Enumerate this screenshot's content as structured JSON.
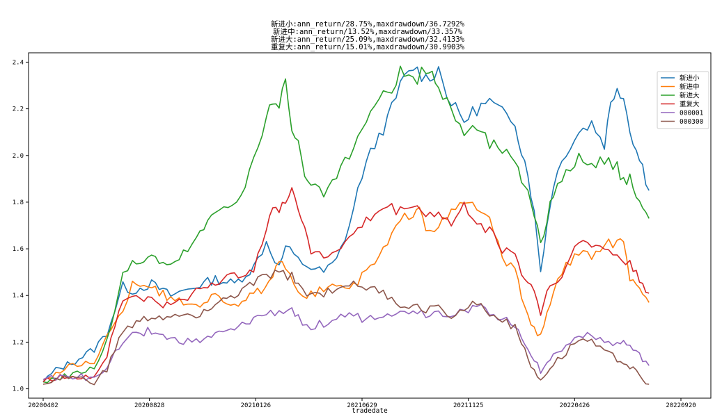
{
  "chart_data": {
    "type": "line",
    "title_lines": [
      "新进小:ann_return/28.75%,maxdrawdown/36.7292%",
      "新进中:ann_return/13.52%,maxdrawdown/33.357%",
      "新进大:ann_return/25.09%,maxdrawdown/32.4133%",
      "重复大:ann_return/15.01%,maxdrawdown/30.9903%"
    ],
    "xlabel": "tradedate",
    "ylabel": "",
    "x_ticks": [
      "20200402",
      "20200828",
      "20210126",
      "20210629",
      "20211125",
      "20220426",
      "20220920"
    ],
    "y_ticks": [
      1.0,
      1.2,
      1.4,
      1.6,
      1.8,
      2.0,
      2.2,
      2.4
    ],
    "ylim": [
      0.96,
      2.44
    ],
    "legend_position": "top-right",
    "grid": false,
    "series": [
      {
        "name": "新进小",
        "color": "#1f77b4",
        "values": [
          [
            0,
            1.03
          ],
          [
            0.02,
            1.08
          ],
          [
            0.05,
            1.12
          ],
          [
            0.08,
            1.17
          ],
          [
            0.1,
            1.24
          ],
          [
            0.125,
            1.44
          ],
          [
            0.14,
            1.42
          ],
          [
            0.17,
            1.45
          ],
          [
            0.2,
            1.4
          ],
          [
            0.24,
            1.44
          ],
          [
            0.27,
            1.47
          ],
          [
            0.3,
            1.45
          ],
          [
            0.33,
            1.52
          ],
          [
            0.35,
            1.63
          ],
          [
            0.37,
            1.52
          ],
          [
            0.38,
            1.61
          ],
          [
            0.4,
            1.55
          ],
          [
            0.42,
            1.52
          ],
          [
            0.44,
            1.5
          ],
          [
            0.46,
            1.55
          ],
          [
            0.48,
            1.7
          ],
          [
            0.5,
            1.92
          ],
          [
            0.52,
            2.05
          ],
          [
            0.54,
            2.15
          ],
          [
            0.56,
            2.3
          ],
          [
            0.58,
            2.38
          ],
          [
            0.6,
            2.33
          ],
          [
            0.62,
            2.37
          ],
          [
            0.64,
            2.22
          ],
          [
            0.66,
            2.15
          ],
          [
            0.68,
            2.2
          ],
          [
            0.7,
            2.23
          ],
          [
            0.72,
            2.18
          ],
          [
            0.74,
            2.15
          ],
          [
            0.75,
            2.02
          ],
          [
            0.76,
            1.93
          ],
          [
            0.77,
            1.75
          ],
          [
            0.78,
            1.51
          ],
          [
            0.79,
            1.7
          ],
          [
            0.8,
            1.88
          ],
          [
            0.82,
            2.02
          ],
          [
            0.84,
            2.1
          ],
          [
            0.86,
            2.14
          ],
          [
            0.88,
            2.05
          ],
          [
            0.89,
            2.22
          ],
          [
            0.9,
            2.3
          ],
          [
            0.91,
            2.25
          ],
          [
            0.92,
            2.12
          ],
          [
            0.93,
            2.02
          ],
          [
            0.94,
            1.95
          ],
          [
            0.95,
            1.85
          ]
        ]
      },
      {
        "name": "新进中",
        "color": "#ff7f0e",
        "values": [
          [
            0,
            1.04
          ],
          [
            0.04,
            1.09
          ],
          [
            0.08,
            1.12
          ],
          [
            0.1,
            1.22
          ],
          [
            0.125,
            1.33
          ],
          [
            0.14,
            1.46
          ],
          [
            0.17,
            1.44
          ],
          [
            0.2,
            1.38
          ],
          [
            0.24,
            1.36
          ],
          [
            0.27,
            1.4
          ],
          [
            0.3,
            1.36
          ],
          [
            0.33,
            1.4
          ],
          [
            0.36,
            1.46
          ],
          [
            0.37,
            1.55
          ],
          [
            0.38,
            1.5
          ],
          [
            0.4,
            1.42
          ],
          [
            0.42,
            1.4
          ],
          [
            0.44,
            1.43
          ],
          [
            0.46,
            1.45
          ],
          [
            0.48,
            1.42
          ],
          [
            0.5,
            1.48
          ],
          [
            0.52,
            1.54
          ],
          [
            0.54,
            1.62
          ],
          [
            0.56,
            1.72
          ],
          [
            0.58,
            1.76
          ],
          [
            0.59,
            1.8
          ],
          [
            0.6,
            1.69
          ],
          [
            0.62,
            1.7
          ],
          [
            0.64,
            1.75
          ],
          [
            0.66,
            1.8
          ],
          [
            0.68,
            1.78
          ],
          [
            0.7,
            1.72
          ],
          [
            0.72,
            1.56
          ],
          [
            0.74,
            1.5
          ],
          [
            0.75,
            1.4
          ],
          [
            0.76,
            1.33
          ],
          [
            0.77,
            1.25
          ],
          [
            0.78,
            1.22
          ],
          [
            0.79,
            1.32
          ],
          [
            0.8,
            1.42
          ],
          [
            0.82,
            1.53
          ],
          [
            0.84,
            1.58
          ],
          [
            0.86,
            1.56
          ],
          [
            0.88,
            1.62
          ],
          [
            0.9,
            1.63
          ],
          [
            0.91,
            1.62
          ],
          [
            0.92,
            1.48
          ],
          [
            0.93,
            1.43
          ],
          [
            0.94,
            1.4
          ],
          [
            0.95,
            1.37
          ]
        ]
      },
      {
        "name": "新进大",
        "color": "#2ca02c",
        "values": [
          [
            0,
            1.03
          ],
          [
            0.04,
            1.06
          ],
          [
            0.08,
            1.09
          ],
          [
            0.1,
            1.2
          ],
          [
            0.125,
            1.5
          ],
          [
            0.14,
            1.53
          ],
          [
            0.17,
            1.57
          ],
          [
            0.2,
            1.52
          ],
          [
            0.24,
            1.64
          ],
          [
            0.27,
            1.76
          ],
          [
            0.29,
            1.8
          ],
          [
            0.31,
            1.82
          ],
          [
            0.33,
            1.98
          ],
          [
            0.35,
            2.16
          ],
          [
            0.36,
            2.24
          ],
          [
            0.37,
            2.18
          ],
          [
            0.38,
            2.33
          ],
          [
            0.39,
            2.13
          ],
          [
            0.4,
            2.04
          ],
          [
            0.41,
            1.9
          ],
          [
            0.42,
            1.86
          ],
          [
            0.44,
            1.84
          ],
          [
            0.46,
            1.9
          ],
          [
            0.48,
            2.0
          ],
          [
            0.5,
            2.1
          ],
          [
            0.52,
            2.22
          ],
          [
            0.54,
            2.26
          ],
          [
            0.56,
            2.35
          ],
          [
            0.58,
            2.32
          ],
          [
            0.6,
            2.36
          ],
          [
            0.61,
            2.37
          ],
          [
            0.62,
            2.28
          ],
          [
            0.64,
            2.2
          ],
          [
            0.66,
            2.1
          ],
          [
            0.68,
            2.12
          ],
          [
            0.7,
            2.05
          ],
          [
            0.72,
            2.03
          ],
          [
            0.74,
            1.96
          ],
          [
            0.75,
            1.9
          ],
          [
            0.76,
            1.86
          ],
          [
            0.77,
            1.75
          ],
          [
            0.78,
            1.63
          ],
          [
            0.79,
            1.72
          ],
          [
            0.8,
            1.84
          ],
          [
            0.82,
            1.92
          ],
          [
            0.84,
            2.0
          ],
          [
            0.86,
            1.94
          ],
          [
            0.88,
            1.98
          ],
          [
            0.9,
            1.96
          ],
          [
            0.91,
            1.88
          ],
          [
            0.92,
            1.92
          ],
          [
            0.93,
            1.82
          ],
          [
            0.94,
            1.78
          ],
          [
            0.95,
            1.73
          ]
        ]
      },
      {
        "name": "重复大",
        "color": "#d62728",
        "values": [
          [
            0,
            1.03
          ],
          [
            0.04,
            1.06
          ],
          [
            0.08,
            1.05
          ],
          [
            0.1,
            1.15
          ],
          [
            0.125,
            1.38
          ],
          [
            0.14,
            1.4
          ],
          [
            0.17,
            1.38
          ],
          [
            0.2,
            1.35
          ],
          [
            0.24,
            1.42
          ],
          [
            0.27,
            1.46
          ],
          [
            0.3,
            1.48
          ],
          [
            0.33,
            1.52
          ],
          [
            0.35,
            1.7
          ],
          [
            0.36,
            1.78
          ],
          [
            0.37,
            1.75
          ],
          [
            0.38,
            1.8
          ],
          [
            0.39,
            1.88
          ],
          [
            0.4,
            1.76
          ],
          [
            0.41,
            1.7
          ],
          [
            0.42,
            1.6
          ],
          [
            0.44,
            1.56
          ],
          [
            0.46,
            1.6
          ],
          [
            0.48,
            1.64
          ],
          [
            0.5,
            1.7
          ],
          [
            0.52,
            1.75
          ],
          [
            0.54,
            1.78
          ],
          [
            0.56,
            1.76
          ],
          [
            0.58,
            1.8
          ],
          [
            0.6,
            1.74
          ],
          [
            0.62,
            1.76
          ],
          [
            0.64,
            1.7
          ],
          [
            0.66,
            1.78
          ],
          [
            0.68,
            1.72
          ],
          [
            0.7,
            1.68
          ],
          [
            0.72,
            1.6
          ],
          [
            0.74,
            1.58
          ],
          [
            0.75,
            1.5
          ],
          [
            0.76,
            1.45
          ],
          [
            0.77,
            1.43
          ],
          [
            0.78,
            1.32
          ],
          [
            0.79,
            1.42
          ],
          [
            0.8,
            1.45
          ],
          [
            0.82,
            1.52
          ],
          [
            0.84,
            1.63
          ],
          [
            0.86,
            1.62
          ],
          [
            0.88,
            1.6
          ],
          [
            0.9,
            1.57
          ],
          [
            0.92,
            1.53
          ],
          [
            0.93,
            1.5
          ],
          [
            0.94,
            1.45
          ],
          [
            0.95,
            1.41
          ]
        ]
      },
      {
        "name": "000001",
        "color": "#9467bd",
        "values": [
          [
            0,
            1.04
          ],
          [
            0.04,
            1.06
          ],
          [
            0.08,
            1.04
          ],
          [
            0.1,
            1.1
          ],
          [
            0.125,
            1.2
          ],
          [
            0.14,
            1.23
          ],
          [
            0.17,
            1.25
          ],
          [
            0.2,
            1.21
          ],
          [
            0.24,
            1.2
          ],
          [
            0.27,
            1.23
          ],
          [
            0.3,
            1.25
          ],
          [
            0.33,
            1.3
          ],
          [
            0.35,
            1.32
          ],
          [
            0.37,
            1.33
          ],
          [
            0.39,
            1.34
          ],
          [
            0.4,
            1.3
          ],
          [
            0.42,
            1.27
          ],
          [
            0.44,
            1.28
          ],
          [
            0.46,
            1.3
          ],
          [
            0.48,
            1.32
          ],
          [
            0.5,
            1.3
          ],
          [
            0.52,
            1.31
          ],
          [
            0.54,
            1.33
          ],
          [
            0.56,
            1.32
          ],
          [
            0.58,
            1.34
          ],
          [
            0.6,
            1.32
          ],
          [
            0.62,
            1.33
          ],
          [
            0.64,
            1.32
          ],
          [
            0.66,
            1.34
          ],
          [
            0.68,
            1.35
          ],
          [
            0.7,
            1.33
          ],
          [
            0.72,
            1.3
          ],
          [
            0.74,
            1.28
          ],
          [
            0.75,
            1.22
          ],
          [
            0.76,
            1.18
          ],
          [
            0.77,
            1.12
          ],
          [
            0.78,
            1.08
          ],
          [
            0.79,
            1.12
          ],
          [
            0.8,
            1.14
          ],
          [
            0.82,
            1.18
          ],
          [
            0.84,
            1.23
          ],
          [
            0.86,
            1.24
          ],
          [
            0.88,
            1.2
          ],
          [
            0.9,
            1.19
          ],
          [
            0.91,
            1.2
          ],
          [
            0.92,
            1.18
          ],
          [
            0.93,
            1.15
          ],
          [
            0.94,
            1.13
          ],
          [
            0.95,
            1.1
          ]
        ]
      },
      {
        "name": "000300",
        "color": "#8c564b",
        "values": [
          [
            0,
            1.02
          ],
          [
            0.04,
            1.05
          ],
          [
            0.08,
            1.03
          ],
          [
            0.1,
            1.08
          ],
          [
            0.125,
            1.25
          ],
          [
            0.14,
            1.27
          ],
          [
            0.17,
            1.31
          ],
          [
            0.2,
            1.3
          ],
          [
            0.24,
            1.32
          ],
          [
            0.27,
            1.36
          ],
          [
            0.3,
            1.4
          ],
          [
            0.33,
            1.45
          ],
          [
            0.35,
            1.48
          ],
          [
            0.37,
            1.5
          ],
          [
            0.39,
            1.48
          ],
          [
            0.4,
            1.44
          ],
          [
            0.42,
            1.4
          ],
          [
            0.44,
            1.41
          ],
          [
            0.46,
            1.43
          ],
          [
            0.48,
            1.46
          ],
          [
            0.5,
            1.44
          ],
          [
            0.52,
            1.42
          ],
          [
            0.54,
            1.4
          ],
          [
            0.56,
            1.36
          ],
          [
            0.58,
            1.35
          ],
          [
            0.6,
            1.34
          ],
          [
            0.62,
            1.35
          ],
          [
            0.64,
            1.32
          ],
          [
            0.66,
            1.34
          ],
          [
            0.68,
            1.37
          ],
          [
            0.7,
            1.33
          ],
          [
            0.72,
            1.3
          ],
          [
            0.74,
            1.26
          ],
          [
            0.75,
            1.2
          ],
          [
            0.76,
            1.12
          ],
          [
            0.77,
            1.08
          ],
          [
            0.78,
            1.04
          ],
          [
            0.79,
            1.08
          ],
          [
            0.8,
            1.11
          ],
          [
            0.82,
            1.16
          ],
          [
            0.84,
            1.22
          ],
          [
            0.86,
            1.2
          ],
          [
            0.88,
            1.16
          ],
          [
            0.9,
            1.13
          ],
          [
            0.91,
            1.12
          ],
          [
            0.92,
            1.1
          ],
          [
            0.93,
            1.07
          ],
          [
            0.94,
            1.04
          ],
          [
            0.95,
            1.02
          ]
        ]
      }
    ]
  }
}
